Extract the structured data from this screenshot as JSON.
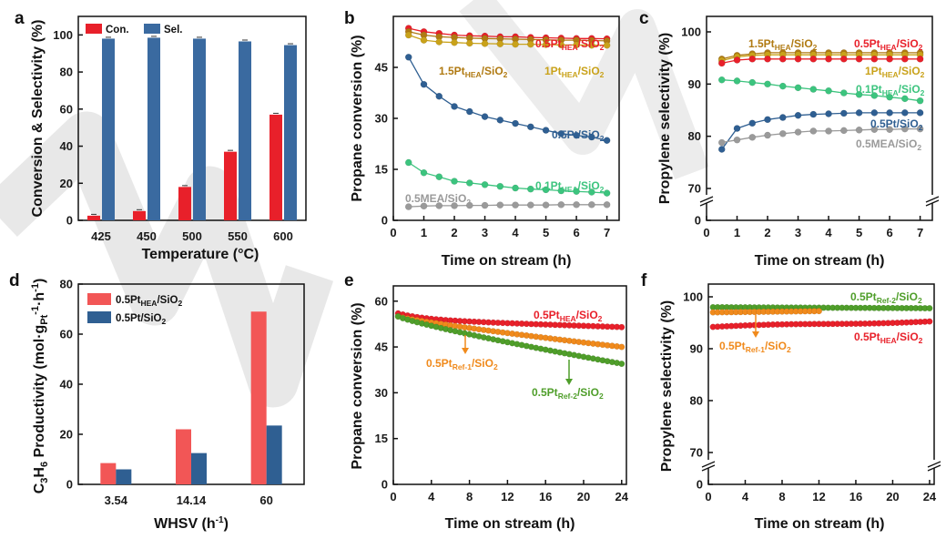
{
  "colors": {
    "red": "#e8202a",
    "blue": "#3a6aa0",
    "pink": "#f25656",
    "navy": "#2f5f92",
    "gold": "#c9a21a",
    "green": "#3cc47e",
    "gray": "#9a9a9a",
    "orange": "#f08a1c",
    "dgreen": "#4f9e2a",
    "watermark": "#cfcfcf"
  },
  "chart_data": [
    {
      "panel": "a",
      "type": "bar",
      "categories": [
        "425",
        "450",
        "500",
        "550",
        "600"
      ],
      "series": [
        {
          "name": "Con.",
          "values": [
            2.5,
            5,
            18,
            37,
            57
          ]
        },
        {
          "name": "Sel.",
          "values": [
            98,
            98.5,
            98,
            96.5,
            94.5
          ]
        }
      ],
      "xlabel": "Temperature (°C)",
      "ylabel": "Conversion & Selectivity (%)",
      "ylim": [
        0,
        110
      ],
      "yticks": [
        "0",
        "20",
        "40",
        "60",
        "80",
        "100"
      ],
      "legend": "top-left"
    },
    {
      "panel": "b",
      "type": "line",
      "x": [
        0.5,
        1,
        1.5,
        2,
        2.5,
        3,
        3.5,
        4,
        4.5,
        5,
        5.5,
        6,
        6.5,
        7
      ],
      "series": [
        {
          "name": "0.5PtHEA/SiO2",
          "values": [
            56.5,
            55.5,
            55,
            54.5,
            54.3,
            54.2,
            54,
            54,
            53.8,
            53.7,
            53.6,
            53.5,
            53.5,
            53.4
          ]
        },
        {
          "name": "1.5PtHEA/SiO2",
          "values": [
            55.5,
            54.5,
            54,
            53.8,
            53.6,
            53.5,
            53.4,
            53.3,
            53.2,
            53.1,
            53,
            53,
            52.9,
            52.8
          ]
        },
        {
          "name": "1PtHEA/SiO2",
          "values": [
            54.5,
            53,
            52.5,
            52.3,
            52.1,
            52,
            51.9,
            51.8,
            51.8,
            51.7,
            51.6,
            51.6,
            51.5,
            51.5
          ]
        },
        {
          "name": "0.5Pt/SiO2",
          "values": [
            48,
            40,
            36.5,
            33.5,
            32,
            30.5,
            29.5,
            28.5,
            27.5,
            26.5,
            25.5,
            25,
            24.5,
            23.5
          ]
        },
        {
          "name": "0.1PtHEA/SiO2",
          "values": [
            17,
            14,
            12.8,
            11.5,
            11,
            10.5,
            10,
            9.5,
            9.2,
            9,
            8.7,
            8.5,
            8.3,
            8
          ]
        },
        {
          "name": "0.5MEA/SiO2",
          "values": [
            4,
            4.2,
            4.3,
            4.3,
            4.4,
            4.4,
            4.5,
            4.5,
            4.5,
            4.5,
            4.6,
            4.6,
            4.6,
            4.6
          ]
        }
      ],
      "xlabel": "Time on stream (h)",
      "ylabel": "Propane conversion (%)",
      "xlim": [
        0,
        7.4
      ],
      "ylim": [
        0,
        60
      ],
      "xticks": [
        "0",
        "1",
        "2",
        "3",
        "4",
        "5",
        "6",
        "7"
      ],
      "yticks": [
        "0",
        "15",
        "30",
        "45"
      ]
    },
    {
      "panel": "c",
      "type": "line",
      "x": [
        0.5,
        1,
        1.5,
        2,
        2.5,
        3,
        3.5,
        4,
        4.5,
        5,
        5.5,
        6,
        6.5,
        7
      ],
      "series": [
        {
          "name": "1.5PtHEA/SiO2",
          "values": [
            94.8,
            95.5,
            95.8,
            96,
            96,
            96,
            96,
            96,
            96,
            96,
            96,
            96,
            96,
            96
          ]
        },
        {
          "name": "1PtHEA/SiO2",
          "values": [
            94.5,
            95.2,
            95.5,
            95.6,
            95.6,
            95.6,
            95.6,
            95.6,
            95.6,
            95.6,
            95.6,
            95.6,
            95.6,
            95.6
          ]
        },
        {
          "name": "0.5PtHEA/SiO2",
          "values": [
            94,
            94.6,
            94.8,
            94.8,
            94.8,
            94.8,
            94.8,
            94.8,
            94.8,
            94.8,
            94.8,
            94.8,
            94.8,
            94.8
          ]
        },
        {
          "name": "0.1PtHEA/SiO2",
          "values": [
            90.8,
            90.6,
            90.3,
            90,
            89.6,
            89.3,
            89,
            88.7,
            88.3,
            88,
            87.8,
            87.5,
            87.2,
            86.8
          ]
        },
        {
          "name": "0.5Pt/SiO2",
          "values": [
            77.5,
            81.5,
            82.5,
            83.2,
            83.6,
            84,
            84.2,
            84.3,
            84.4,
            84.5,
            84.5,
            84.5,
            84.5,
            84.5
          ]
        },
        {
          "name": "0.5MEA/SiO2",
          "values": [
            78.8,
            79.3,
            79.8,
            80.2,
            80.5,
            80.8,
            81,
            81,
            81.1,
            81.2,
            81.3,
            81.3,
            81.4,
            81.4
          ]
        }
      ],
      "xlabel": "Time on stream (h)",
      "ylabel": "Propylene selectivity (%)",
      "xlim": [
        0,
        7.4
      ],
      "ylim": [
        65,
        100
      ],
      "axis_break": true,
      "xticks": [
        "0",
        "1",
        "2",
        "3",
        "4",
        "5",
        "6",
        "7"
      ],
      "yticks": [
        "0",
        "70",
        "80",
        "90",
        "100"
      ]
    },
    {
      "panel": "d",
      "type": "bar",
      "categories": [
        "3.54",
        "14.14",
        "60"
      ],
      "series": [
        {
          "name": "0.5PtHEA/SiO2",
          "values": [
            8.5,
            22,
            69
          ]
        },
        {
          "name": "0.5Pt/SiO2",
          "values": [
            6,
            12.5,
            23.5
          ]
        }
      ],
      "xlabel": "WHSV (h",
      "xlabel_sup": "-1",
      "xlabel_end": ")",
      "ylabel": "C3H6 Productivity (mol·gPt-1·h-1)",
      "ylim": [
        0,
        80
      ],
      "yticks": [
        "0",
        "20",
        "40",
        "60",
        "80"
      ],
      "legend": "top-left"
    },
    {
      "panel": "e",
      "type": "line",
      "x": [
        0.5,
        1,
        1.5,
        2,
        2.5,
        3,
        3.5,
        4,
        4.5,
        5,
        5.5,
        6,
        6.5,
        7,
        7.5,
        8,
        8.5,
        9,
        9.5,
        10,
        10.5,
        11,
        11.5,
        12,
        12.5,
        13,
        13.5,
        14,
        14.5,
        15,
        15.5,
        16,
        16.5,
        17,
        17.5,
        18,
        18.5,
        19,
        19.5,
        20,
        20.5,
        21,
        21.5,
        22,
        22.5,
        23,
        23.5,
        24
      ],
      "series": [
        {
          "name": "0.5PtHEA/SiO2",
          "start": 56,
          "end": 51.5,
          "shape": "exp"
        },
        {
          "name": "0.5PtRef-1/SiO2",
          "start": 55,
          "end": 45,
          "shape": "linear"
        },
        {
          "name": "0.5PtRef-2/SiO2",
          "start": 55,
          "end": 39.5,
          "shape": "linear"
        }
      ],
      "xlabel": "Time on stream (h)",
      "ylabel": "Propane conversion (%)",
      "xlim": [
        0,
        24.5
      ],
      "ylim": [
        0,
        65
      ],
      "xticks": [
        "0",
        "4",
        "8",
        "12",
        "16",
        "20",
        "24"
      ],
      "yticks": [
        "0",
        "15",
        "30",
        "45",
        "60"
      ]
    },
    {
      "panel": "f",
      "type": "line",
      "x": [
        0.5,
        1,
        1.5,
        2,
        2.5,
        3,
        3.5,
        4,
        4.5,
        5,
        5.5,
        6,
        6.5,
        7,
        7.5,
        8,
        8.5,
        9,
        9.5,
        10,
        10.5,
        11,
        11.5,
        12,
        12.5,
        13,
        13.5,
        14,
        14.5,
        15,
        15.5,
        16,
        16.5,
        17,
        17.5,
        18,
        18.5,
        19,
        19.5,
        20,
        20.5,
        21,
        21.5,
        22,
        22.5,
        23,
        23.5,
        24
      ],
      "series": [
        {
          "name": "0.5PtRef-2/SiO2",
          "start": 98,
          "end": 97.8,
          "shape": "flat"
        },
        {
          "name": "0.5PtRef-1/SiO2",
          "start": 97,
          "end": 97.5,
          "shape": "short"
        },
        {
          "name": "0.5PtHEA/SiO2",
          "start": 94.2,
          "end": 95.3,
          "shape": "flat"
        }
      ],
      "xlabel": "Time on stream (h)",
      "ylabel": "Propylene selectivity (%)",
      "xlim": [
        0,
        24.5
      ],
      "ylim": [
        65,
        102
      ],
      "axis_break": true,
      "xticks": [
        "0",
        "4",
        "8",
        "12",
        "16",
        "20",
        "24"
      ],
      "yticks": [
        "0",
        "70",
        "80",
        "90",
        "100"
      ]
    }
  ],
  "panel_letters": [
    "a",
    "b",
    "c",
    "d",
    "e",
    "f"
  ],
  "legend_a": {
    "con": "Con.",
    "sel": "Sel."
  },
  "legend_d": {
    "hea": {
      "main": "0.5Pt",
      "sub": "HEA",
      "end": "/SiO",
      "sub2": "2"
    },
    "pt": {
      "main": "0.5Pt/SiO",
      "sub": "2"
    }
  },
  "labels": {
    "hea05": {
      "main": "0.5Pt",
      "sub": "HEA",
      "end": "/SiO",
      "sub2": "2"
    },
    "hea15": {
      "main": "1.5Pt",
      "sub": "HEA",
      "end": "/SiO",
      "sub2": "2"
    },
    "hea1": {
      "main": "1Pt",
      "sub": "HEA",
      "end": "/SiO",
      "sub2": "2"
    },
    "hea01": {
      "main": "0.1Pt",
      "sub": "HEA",
      "end": "/SiO",
      "sub2": "2"
    },
    "pt05": {
      "main": "0.5Pt/SiO",
      "sub": "2"
    },
    "mea05": {
      "main": "0.5MEA/SiO",
      "sub": "2"
    },
    "ref1": {
      "main": "0.5Pt",
      "sub": "Ref-1",
      "end": "/SiO",
      "sub2": "2"
    },
    "ref2": {
      "main": "0.5Pt",
      "sub": "Ref-2",
      "end": "/SiO",
      "sub2": "2"
    }
  },
  "ylabel_d": {
    "c": "C",
    "s1": "3",
    "h": "H",
    "s2": "6",
    "rest": " Productivity (mol·g",
    "pt": "Pt",
    "sup1": "-1",
    "dot": "·h",
    "sup2": "-1",
    "close": ")"
  }
}
